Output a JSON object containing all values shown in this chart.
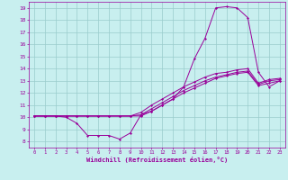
{
  "xlabel": "Windchill (Refroidissement éolien,°C)",
  "bg_color": "#c8efef",
  "line_color": "#990099",
  "grid_color": "#99cccc",
  "xlim": [
    -0.5,
    23.5
  ],
  "ylim": [
    7.5,
    19.5
  ],
  "xticks": [
    0,
    1,
    2,
    3,
    4,
    5,
    6,
    7,
    8,
    9,
    10,
    11,
    12,
    13,
    14,
    15,
    16,
    17,
    18,
    19,
    20,
    21,
    22,
    23
  ],
  "yticks": [
    8,
    9,
    10,
    11,
    12,
    13,
    14,
    15,
    16,
    17,
    18,
    19
  ],
  "line1_x": [
    0,
    1,
    2,
    3,
    4,
    5,
    6,
    7,
    8,
    9,
    10,
    11,
    12,
    13,
    14,
    15,
    16,
    17,
    18,
    19,
    20,
    21,
    22,
    23
  ],
  "line1_y": [
    10.1,
    10.1,
    10.1,
    10.0,
    9.5,
    8.5,
    8.5,
    8.5,
    8.2,
    8.7,
    10.2,
    10.5,
    11.0,
    11.5,
    12.5,
    14.8,
    16.5,
    19.0,
    19.1,
    19.0,
    18.2,
    13.7,
    12.5,
    13.0
  ],
  "line2_x": [
    0,
    1,
    2,
    3,
    4,
    5,
    6,
    7,
    8,
    9,
    10,
    11,
    12,
    13,
    14,
    15,
    16,
    17,
    18,
    19,
    20,
    21,
    22,
    23
  ],
  "line2_y": [
    10.1,
    10.1,
    10.1,
    10.1,
    10.1,
    10.1,
    10.1,
    10.1,
    10.1,
    10.1,
    10.1,
    10.5,
    11.0,
    11.5,
    12.0,
    12.4,
    12.8,
    13.2,
    13.4,
    13.6,
    13.7,
    12.6,
    12.8,
    13.0
  ],
  "line3_x": [
    0,
    1,
    2,
    3,
    4,
    5,
    6,
    7,
    8,
    9,
    10,
    11,
    12,
    13,
    14,
    15,
    16,
    17,
    18,
    19,
    20,
    21,
    22,
    23
  ],
  "line3_y": [
    10.1,
    10.1,
    10.1,
    10.1,
    10.1,
    10.1,
    10.1,
    10.1,
    10.1,
    10.1,
    10.2,
    10.7,
    11.2,
    11.7,
    12.2,
    12.6,
    13.0,
    13.3,
    13.5,
    13.7,
    13.8,
    12.7,
    13.0,
    13.1
  ],
  "line4_x": [
    0,
    1,
    2,
    3,
    4,
    5,
    6,
    7,
    8,
    9,
    10,
    11,
    12,
    13,
    14,
    15,
    16,
    17,
    18,
    19,
    20,
    21,
    22,
    23
  ],
  "line4_y": [
    10.1,
    10.1,
    10.1,
    10.1,
    10.1,
    10.1,
    10.1,
    10.1,
    10.1,
    10.1,
    10.4,
    11.0,
    11.5,
    12.0,
    12.5,
    12.9,
    13.3,
    13.6,
    13.7,
    13.9,
    14.0,
    12.8,
    13.1,
    13.2
  ]
}
